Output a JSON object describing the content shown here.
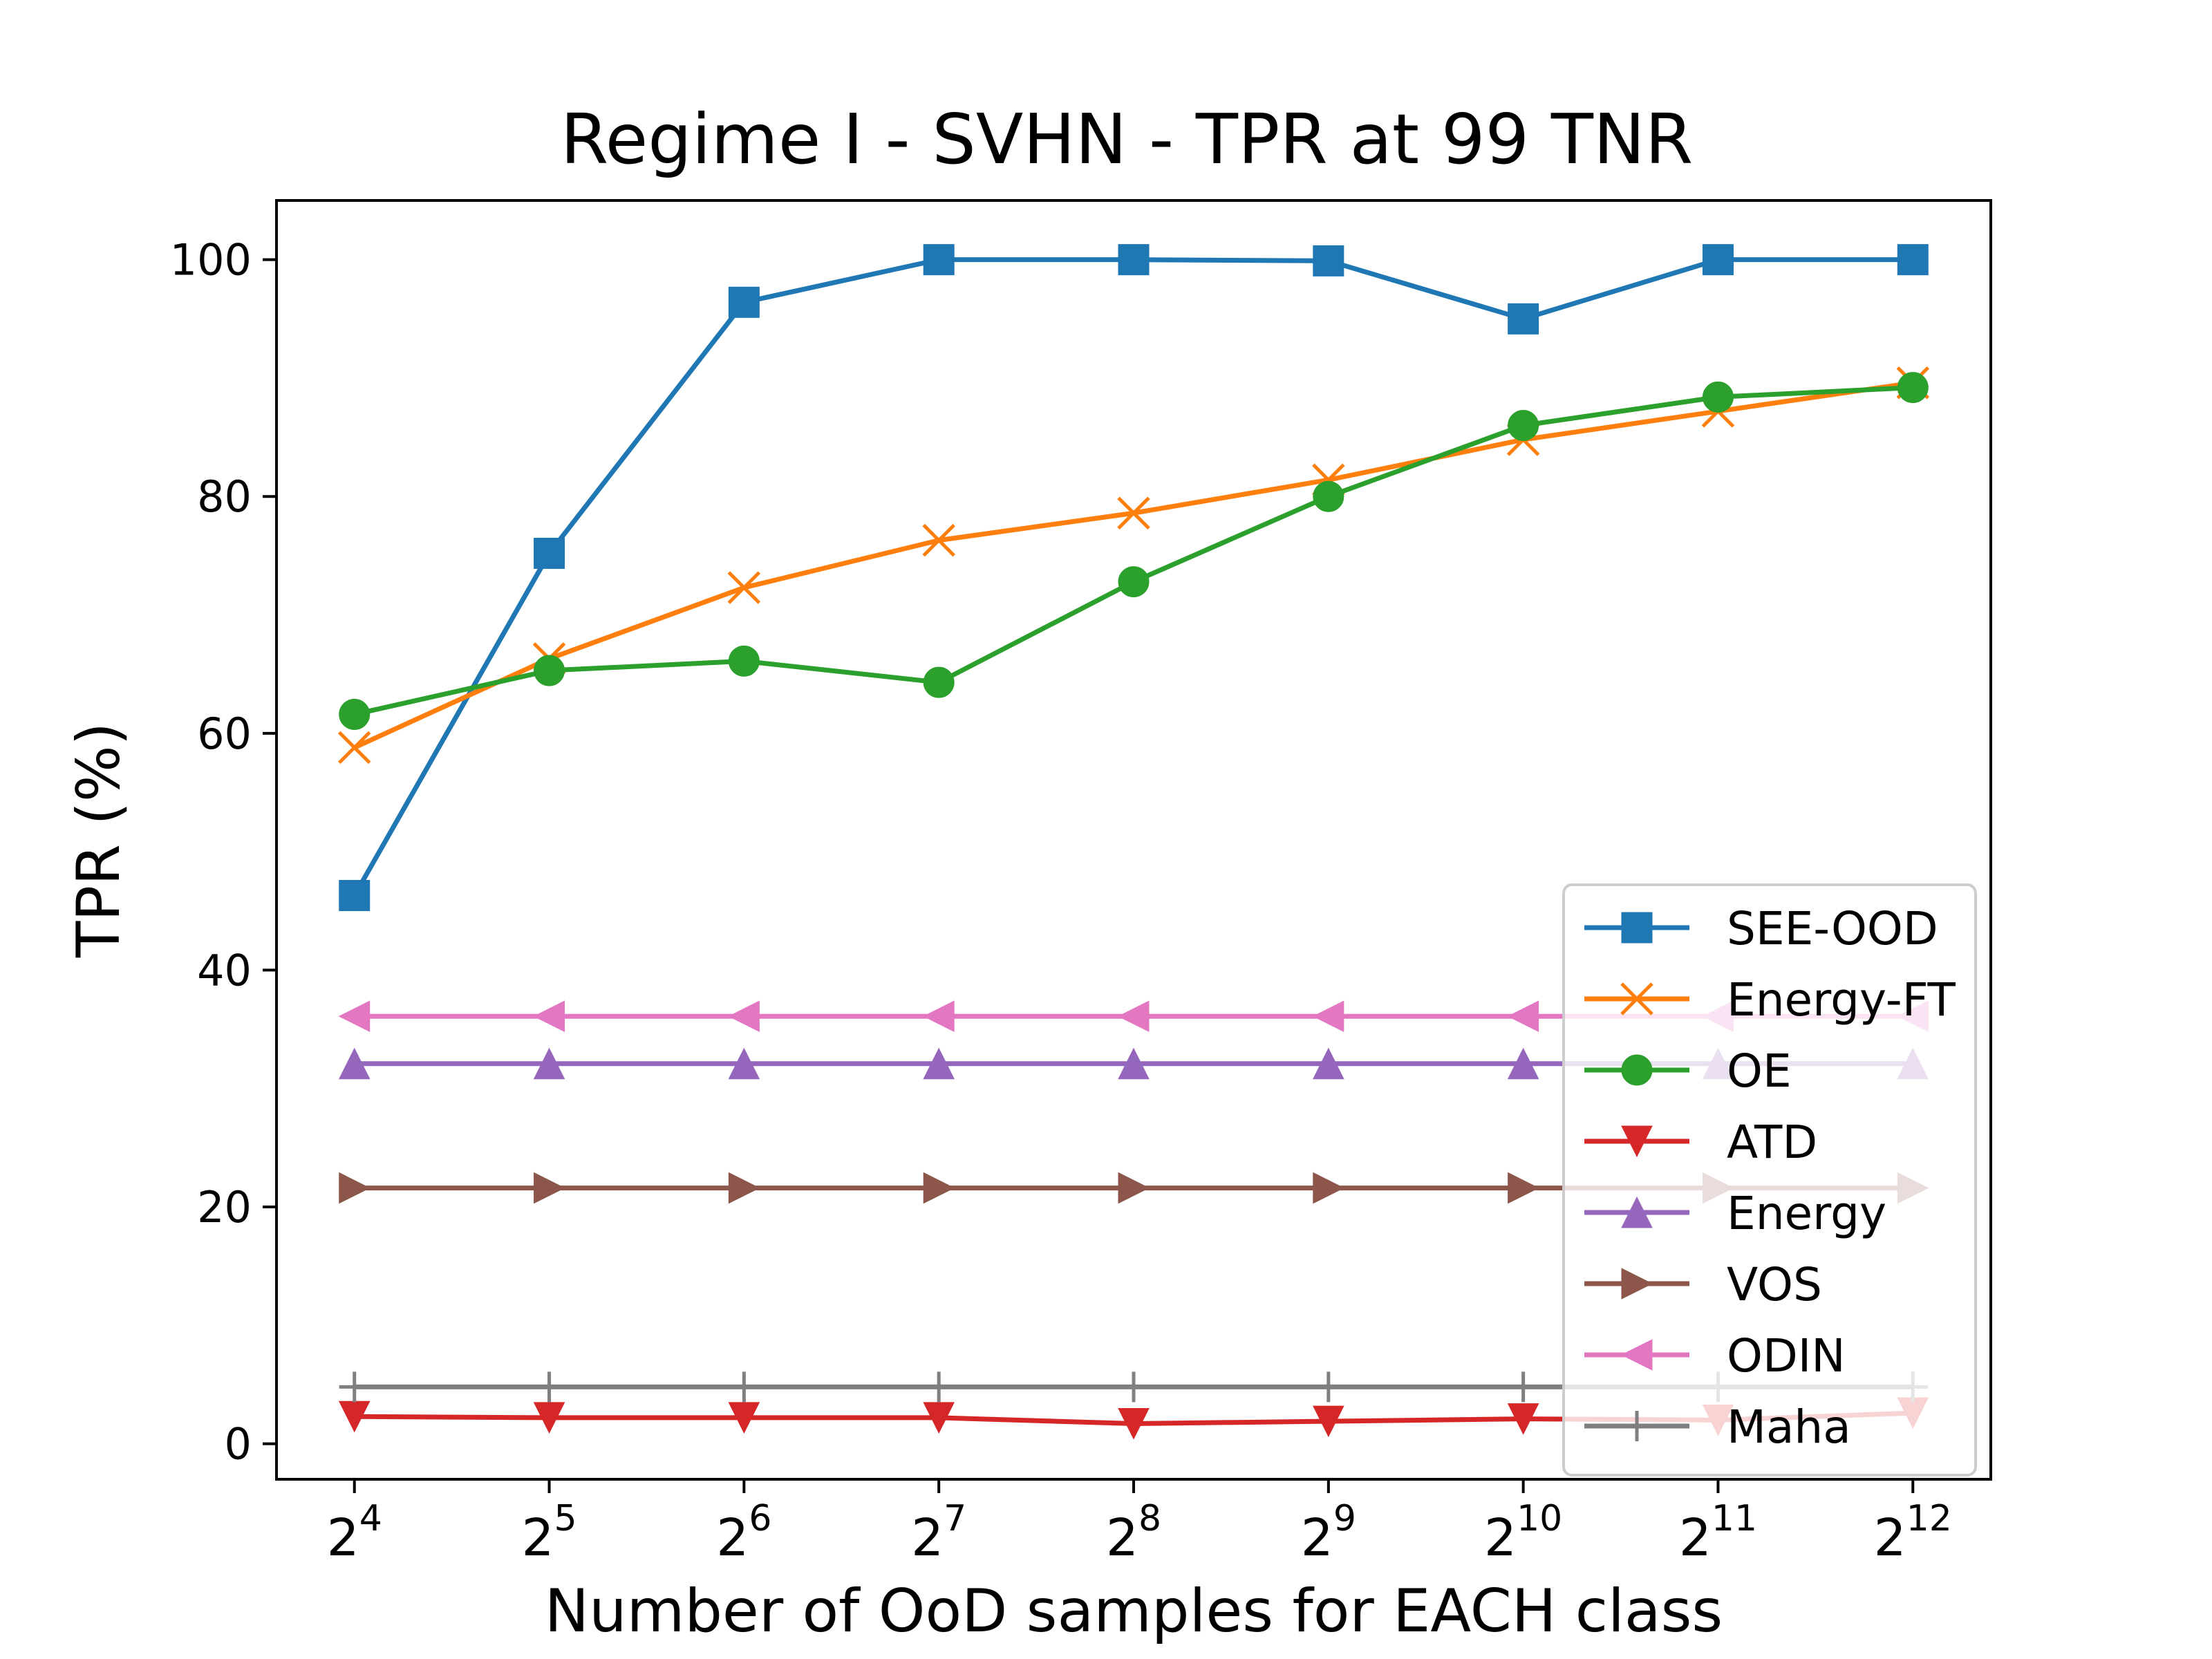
{
  "chart_data": {
    "type": "line",
    "title": "Regime I - SVHN - TPR at 99 TNR",
    "xlabel": "Number of OoD samples for EACH class",
    "ylabel": "TPR (%)",
    "x_scale": "log2",
    "x_exponents": [
      4,
      5,
      6,
      7,
      8,
      9,
      10,
      11,
      12
    ],
    "x_tick_labels": [
      {
        "base": "2",
        "exp": "4"
      },
      {
        "base": "2",
        "exp": "5"
      },
      {
        "base": "2",
        "exp": "6"
      },
      {
        "base": "2",
        "exp": "7"
      },
      {
        "base": "2",
        "exp": "8"
      },
      {
        "base": "2",
        "exp": "9"
      },
      {
        "base": "2",
        "exp": "10"
      },
      {
        "base": "2",
        "exp": "11"
      },
      {
        "base": "2",
        "exp": "12"
      }
    ],
    "ylim": [
      -3,
      105
    ],
    "y_ticks": [
      0,
      20,
      40,
      60,
      80,
      100
    ],
    "y_tick_labels": [
      "0",
      "20",
      "40",
      "60",
      "80",
      "100"
    ],
    "grid": false,
    "legend_position": "lower-right",
    "series": [
      {
        "name": "SEE-OOD",
        "color": "#1f77b4",
        "marker": "square",
        "values": [
          46.3,
          75.2,
          96.4,
          100.0,
          100.0,
          99.9,
          95.0,
          100.0,
          100.0
        ]
      },
      {
        "name": "Energy-FT",
        "color": "#ff7f0e",
        "marker": "x",
        "values": [
          58.8,
          66.3,
          72.3,
          76.3,
          78.6,
          81.4,
          84.8,
          87.2,
          89.6
        ]
      },
      {
        "name": "OE",
        "color": "#2ca02c",
        "marker": "circle",
        "values": [
          61.6,
          65.3,
          66.1,
          64.3,
          72.8,
          80.0,
          86.0,
          88.4,
          89.2
        ]
      },
      {
        "name": "ATD",
        "color": "#d62728",
        "marker": "triangle-down",
        "values": [
          2.3,
          2.2,
          2.2,
          2.2,
          1.7,
          1.9,
          2.1,
          2.0,
          2.6
        ]
      },
      {
        "name": "Energy",
        "color": "#9467bd",
        "marker": "triangle-up",
        "values": [
          32.1,
          32.1,
          32.1,
          32.1,
          32.1,
          32.1,
          32.1,
          32.1,
          32.1
        ]
      },
      {
        "name": "VOS",
        "color": "#8c564b",
        "marker": "triangle-right",
        "values": [
          21.6,
          21.6,
          21.6,
          21.6,
          21.6,
          21.6,
          21.6,
          21.6,
          21.6
        ]
      },
      {
        "name": "ODIN",
        "color": "#e377c2",
        "marker": "triangle-left",
        "values": [
          36.1,
          36.1,
          36.1,
          36.1,
          36.1,
          36.1,
          36.1,
          36.1,
          36.1
        ]
      },
      {
        "name": "Maha",
        "color": "#7f7f7f",
        "marker": "plus",
        "values": [
          4.8,
          4.8,
          4.8,
          4.8,
          4.8,
          4.8,
          4.8,
          4.8,
          4.8
        ]
      }
    ]
  }
}
